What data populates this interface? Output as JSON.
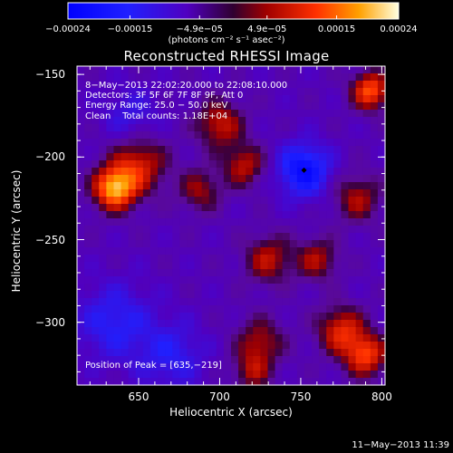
{
  "chart_data": {
    "type": "heatmap",
    "title": "Reconstructed RHESSI Image",
    "xlabel": "Heliocentric X (arcsec)",
    "ylabel": "Heliocentric Y (arcsec)",
    "xlim": [
      612,
      802
    ],
    "ylim": [
      -338,
      -145
    ],
    "x_ticks": [
      650,
      700,
      750,
      800
    ],
    "y_ticks": [
      -150,
      -200,
      -250,
      -300
    ],
    "colorbar": {
      "range": [
        -0.00024,
        0.00024
      ],
      "tick_values": [
        -0.00024,
        -0.00015,
        -4.9e-05,
        4.9e-05,
        0.00015,
        0.00024
      ],
      "tick_labels": [
        "−0.00024",
        "−0.00015",
        "−4.9e−05",
        "4.9e−05",
        "0.00015",
        "0.00024"
      ],
      "units": "(photons cm⁻² s⁻¹ asec⁻²)"
    },
    "annotations": {
      "line1": "8−May−2013 22:02:20.000 to 22:08:10.000",
      "line2": "Detectors: 3F 5F 6F 7F 8F 9F, Att 0",
      "line3": "Energy Range: 25.0 − 50.0 keV",
      "line4": "Clean    Total counts: 1.18E+04",
      "peak": "Position of Peak = [635,−219]"
    },
    "peak_position": [
      635,
      -219
    ],
    "min_marker_position": [
      752,
      -208
    ],
    "features": [
      {
        "x": 635,
        "y": -219,
        "amp": 0.00024,
        "w": 9
      },
      {
        "x": 650,
        "y": -205,
        "amp": 0.00014,
        "w": 12
      },
      {
        "x": 700,
        "y": -180,
        "amp": 0.00013,
        "w": 10
      },
      {
        "x": 715,
        "y": -205,
        "amp": 0.00012,
        "w": 9
      },
      {
        "x": 688,
        "y": -220,
        "amp": 0.0001,
        "w": 9
      },
      {
        "x": 730,
        "y": -262,
        "amp": 0.00012,
        "w": 10
      },
      {
        "x": 760,
        "y": -262,
        "amp": 0.00011,
        "w": 9
      },
      {
        "x": 785,
        "y": -225,
        "amp": 0.00011,
        "w": 10
      },
      {
        "x": 793,
        "y": -160,
        "amp": 0.00019,
        "w": 8
      },
      {
        "x": 775,
        "y": -305,
        "amp": 0.00015,
        "w": 10
      },
      {
        "x": 790,
        "y": -320,
        "amp": 0.00017,
        "w": 9
      },
      {
        "x": 725,
        "y": -312,
        "amp": 0.00011,
        "w": 10
      },
      {
        "x": 720,
        "y": -330,
        "amp": 0.0001,
        "w": 8
      },
      {
        "x": 752,
        "y": -208,
        "amp": -0.00016,
        "w": 11
      },
      {
        "x": 635,
        "y": -300,
        "amp": -9e-05,
        "w": 16
      },
      {
        "x": 670,
        "y": -320,
        "amp": -8e-05,
        "w": 14
      },
      {
        "x": 645,
        "y": -175,
        "amp": -6e-05,
        "w": 12
      }
    ]
  }
}
